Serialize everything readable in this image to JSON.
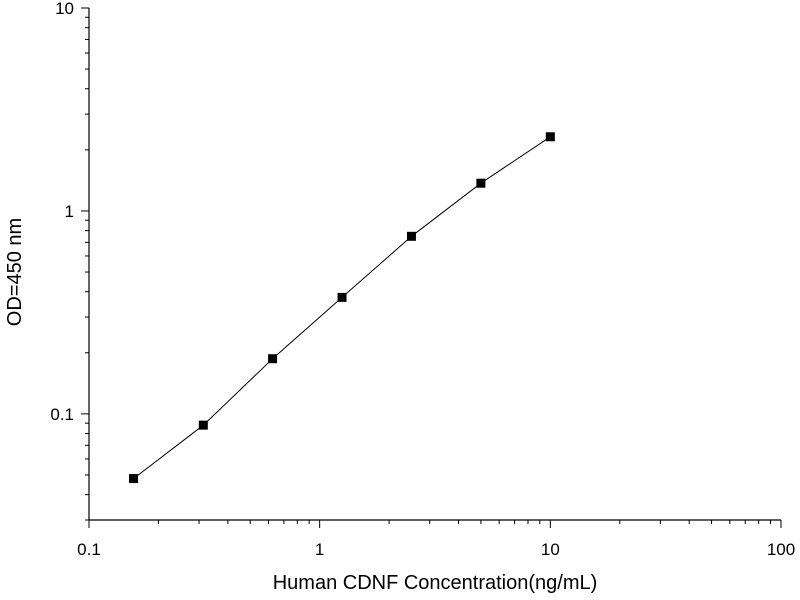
{
  "chart_data": {
    "type": "scatter",
    "title": "",
    "xlabel": "Human CDNF Concentration(ng/mL)",
    "ylabel": "OD=450 nm",
    "x_scale": "log",
    "y_scale": "log",
    "xlim": [
      0.1,
      100
    ],
    "ylim": [
      0.03,
      10
    ],
    "x_ticks": [
      {
        "value": 0.1,
        "label": "0.1"
      },
      {
        "value": 1,
        "label": "1"
      },
      {
        "value": 10,
        "label": "10"
      },
      {
        "value": 100,
        "label": "100"
      }
    ],
    "y_ticks": [
      {
        "value": 0.1,
        "label": "0.1"
      },
      {
        "value": 1,
        "label": "1"
      },
      {
        "value": 10,
        "label": "10"
      }
    ],
    "grid": false,
    "legend": "none",
    "marker": "square",
    "connect_points": true,
    "color": "#000000",
    "series": [
      {
        "x": [
          0.156,
          0.313,
          0.625,
          1.25,
          2.5,
          5,
          10
        ],
        "y": [
          0.048,
          0.088,
          0.187,
          0.375,
          0.75,
          1.37,
          2.32
        ]
      }
    ]
  }
}
